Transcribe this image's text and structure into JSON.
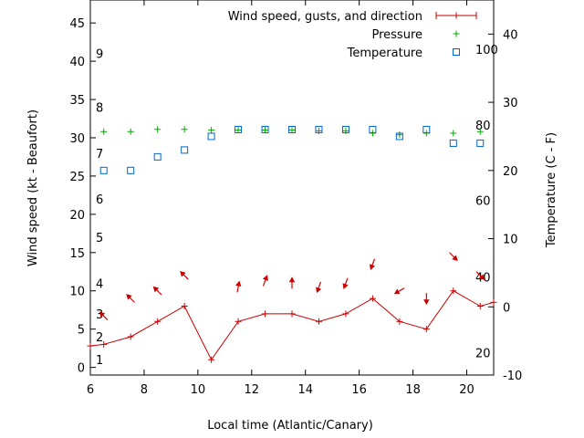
{
  "chart_data": {
    "type": "line",
    "xlabel": "Local time (Atlantic/Canary)",
    "ylabel_left": "Wind speed (kt - Beaufort)",
    "ylabel_right": "Temperature (C - F)",
    "xlim": [
      6,
      21
    ],
    "ylim_left": [
      -1,
      48
    ],
    "ylim_right": [
      -10,
      45
    ],
    "grid": false,
    "legend_position": "top-right",
    "x_ticks": [
      6,
      8,
      10,
      12,
      14,
      16,
      18,
      20
    ],
    "y_left_ticks": [
      0,
      5,
      10,
      15,
      20,
      25,
      30,
      35,
      40,
      45
    ],
    "y_right_ticks": [
      -10,
      0,
      10,
      20,
      30,
      40
    ],
    "beaufort_labels": [
      {
        "label": "1",
        "kt": 1
      },
      {
        "label": "2",
        "kt": 4
      },
      {
        "label": "3",
        "kt": 7
      },
      {
        "label": "4",
        "kt": 11
      },
      {
        "label": "5",
        "kt": 17
      },
      {
        "label": "6",
        "kt": 22
      },
      {
        "label": "7",
        "kt": 28
      },
      {
        "label": "8",
        "kt": 34
      },
      {
        "label": "9",
        "kt": 41
      }
    ],
    "fahrenheit_labels": [
      {
        "label": "20",
        "celsius": -6.7
      },
      {
        "label": "40",
        "celsius": 4.4
      },
      {
        "label": "60",
        "celsius": 15.6
      },
      {
        "label": "80",
        "celsius": 26.7
      },
      {
        "label": "100",
        "celsius": 37.8
      }
    ],
    "series": [
      {
        "name": "Wind speed, gusts, and direction",
        "color": "#cc0000",
        "axis": "left",
        "marker": "plus",
        "x": [
          6,
          6.5,
          7.5,
          8.5,
          9.5,
          10.5,
          11.5,
          12.5,
          13.5,
          14.5,
          15.5,
          16.5,
          17.5,
          18.5,
          19.5,
          20.5,
          21
        ],
        "y": [
          2.8,
          3,
          4,
          6,
          8,
          1,
          6,
          7,
          7,
          6,
          7,
          9,
          6,
          5,
          10,
          8,
          8.5
        ]
      },
      {
        "name": "Pressure",
        "color": "#00aa00",
        "axis": "left",
        "marker": "plus",
        "x": [
          6.5,
          7.5,
          8.5,
          9.5,
          10.5,
          11.5,
          12.5,
          13.5,
          14.5,
          15.5,
          16.5,
          17.5,
          18.5,
          19.5,
          20.5
        ],
        "y": [
          30.8,
          30.8,
          31.1,
          31.1,
          31,
          31,
          31,
          31,
          30.9,
          30.9,
          30.6,
          30.4,
          30.6,
          30.6,
          30.8
        ]
      },
      {
        "name": "Temperature",
        "color": "#0066cc",
        "axis": "right",
        "marker": "square",
        "x": [
          6.5,
          7.5,
          8.5,
          9.5,
          10.5,
          11.5,
          12.5,
          13.5,
          14.5,
          15.5,
          16.5,
          17.5,
          18.5,
          19.5,
          20.5
        ],
        "y": [
          20,
          20,
          22,
          23,
          25,
          26,
          26,
          26,
          26,
          26,
          26,
          25,
          26,
          24,
          24
        ]
      }
    ],
    "wind_direction_arrows": [
      {
        "x": 6.5,
        "y": 6.7,
        "dir_deg": 315
      },
      {
        "x": 7.5,
        "y": 9.0,
        "dir_deg": 315
      },
      {
        "x": 8.5,
        "y": 10.0,
        "dir_deg": 315
      },
      {
        "x": 9.5,
        "y": 12.0,
        "dir_deg": 315
      },
      {
        "x": 11.5,
        "y": 10.5,
        "dir_deg": 10
      },
      {
        "x": 12.5,
        "y": 11.3,
        "dir_deg": 20
      },
      {
        "x": 13.5,
        "y": 11.0,
        "dir_deg": 0
      },
      {
        "x": 14.5,
        "y": 10.5,
        "dir_deg": 200
      },
      {
        "x": 15.5,
        "y": 11.0,
        "dir_deg": 200
      },
      {
        "x": 16.5,
        "y": 13.5,
        "dir_deg": 200
      },
      {
        "x": 17.5,
        "y": 10.0,
        "dir_deg": 240
      },
      {
        "x": 18.5,
        "y": 9.0,
        "dir_deg": 180
      },
      {
        "x": 19.5,
        "y": 14.5,
        "dir_deg": 135
      },
      {
        "x": 20.5,
        "y": 12.0,
        "dir_deg": 135
      }
    ]
  }
}
